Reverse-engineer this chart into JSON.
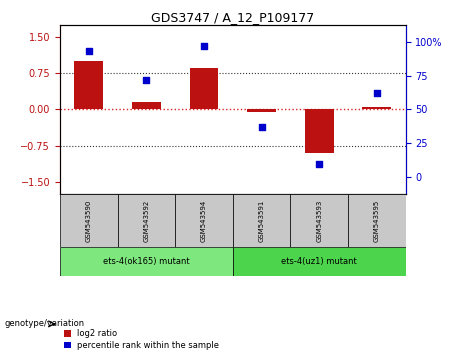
{
  "title": "GDS3747 / A_12_P109177",
  "samples": [
    "GSM543590",
    "GSM543592",
    "GSM543594",
    "GSM543591",
    "GSM543593",
    "GSM543595"
  ],
  "log2_ratio": [
    1.0,
    0.15,
    0.85,
    -0.05,
    -0.9,
    0.05
  ],
  "percentile_rank": [
    93,
    72,
    97,
    37,
    10,
    62
  ],
  "groups": [
    {
      "label": "ets-4(ok165) mutant",
      "samples": [
        0,
        1,
        2
      ],
      "color": "#7ee87e"
    },
    {
      "label": "ets-4(uz1) mutant",
      "samples": [
        3,
        4,
        5
      ],
      "color": "#4cd44c"
    }
  ],
  "ylim_left": [
    -1.75,
    1.75
  ],
  "yticks_left": [
    -1.5,
    -0.75,
    0,
    0.75,
    1.5
  ],
  "ylim_right": [
    -0.125,
    1.125
  ],
  "yticks_right": [
    0,
    0.25,
    0.5,
    0.75,
    1.0
  ],
  "yticklabels_right": [
    "0",
    "25",
    "50",
    "75",
    "100%"
  ],
  "bar_color": "#bb1111",
  "dot_color": "#0000cc",
  "bar_width": 0.5,
  "hline_color": "#dd2222",
  "grid_color": "#333333",
  "bg_color": "#ffffff",
  "label_log2": "log2 ratio",
  "label_percentile": "percentile rank within the sample",
  "genotype_label": "genotype/variation"
}
